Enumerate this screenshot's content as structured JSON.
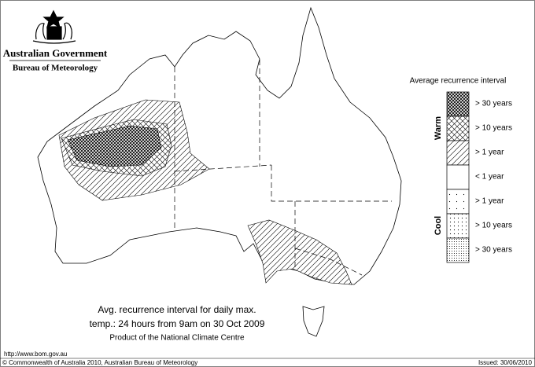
{
  "header": {
    "title": "Australian Government",
    "subtitle": "Bureau of Meteorology"
  },
  "legend": {
    "title": "Average recurrence interval",
    "groups": [
      "Warm",
      "Cool"
    ],
    "items": [
      "> 30 years",
      "> 10 years",
      "> 1 year",
      "< 1 year",
      "> 1 year",
      "> 10 years",
      "> 30 years"
    ]
  },
  "caption": {
    "lines": [
      "Avg. recurrence interval for daily max.",
      "temp.: 24 hours from 9am on 30 Oct 2009"
    ],
    "credit": "Product of the National Climate Centre"
  },
  "footer": {
    "url": "http://www.bom.gov.au",
    "copyright": "© Commonwealth of Australia 2010, Australian Bureau of Meteorology",
    "issued": "Issued: 30/06/2010"
  }
}
